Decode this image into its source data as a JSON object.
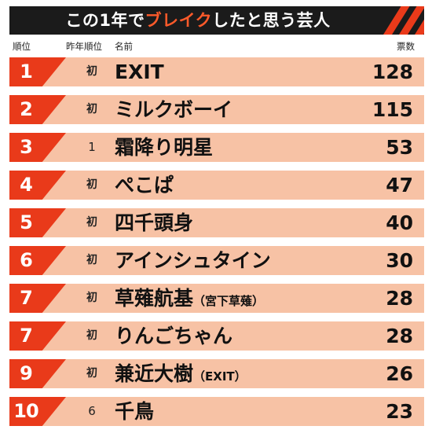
{
  "title": {
    "before": "この1年で",
    "highlight": "ブレイク",
    "after": "したと思う芸人"
  },
  "colors": {
    "accent": "#e93a1a",
    "row_background": "#f7c2a5",
    "banner": "#1b1b1b"
  },
  "chart_data": {
    "type": "table",
    "columns": {
      "rank": "順位",
      "previous_rank": "昨年順位",
      "name": "名前",
      "votes": "票数"
    },
    "rows": [
      {
        "rank": "1",
        "previous_rank": "初",
        "name": "EXIT",
        "note": "",
        "votes": 128
      },
      {
        "rank": "2",
        "previous_rank": "初",
        "name": "ミルクボーイ",
        "note": "",
        "votes": 115
      },
      {
        "rank": "3",
        "previous_rank": "1",
        "name": "霜降り明星",
        "note": "",
        "votes": 53
      },
      {
        "rank": "4",
        "previous_rank": "初",
        "name": "ぺこぱ",
        "note": "",
        "votes": 47
      },
      {
        "rank": "5",
        "previous_rank": "初",
        "name": "四千頭身",
        "note": "",
        "votes": 40
      },
      {
        "rank": "6",
        "previous_rank": "初",
        "name": "アインシュタイン",
        "note": "",
        "votes": 30
      },
      {
        "rank": "7",
        "previous_rank": "初",
        "name": "草薙航基",
        "note": "（宮下草薙）",
        "votes": 28
      },
      {
        "rank": "7",
        "previous_rank": "初",
        "name": "りんごちゃん",
        "note": "",
        "votes": 28
      },
      {
        "rank": "9",
        "previous_rank": "初",
        "name": "兼近大樹",
        "note": "（EXIT）",
        "votes": 26
      },
      {
        "rank": "10",
        "previous_rank": "6",
        "name": "千鳥",
        "note": "",
        "votes": 23
      }
    ]
  }
}
